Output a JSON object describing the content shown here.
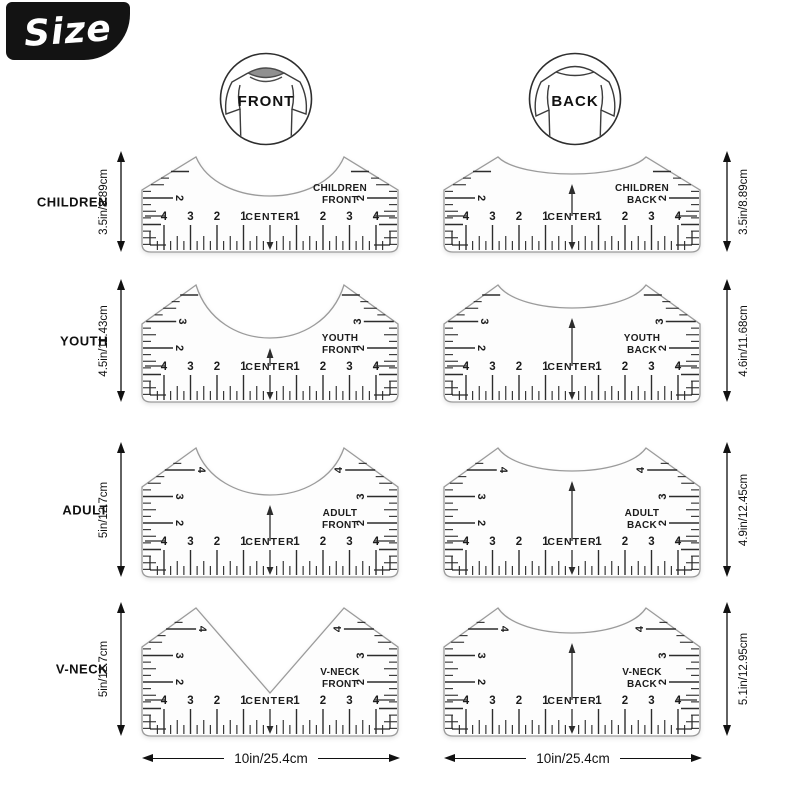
{
  "badge": {
    "label": "Size"
  },
  "headers": {
    "front": "FRONT",
    "back": "BACK"
  },
  "scale": {
    "left_numbers": [
      "4",
      "3",
      "2",
      "1"
    ],
    "center_label": "CENTER",
    "right_numbers": [
      "1",
      "2",
      "3",
      "4"
    ]
  },
  "rows": [
    {
      "label": "CHILDREN",
      "left_height": "3.5in/8.89cm",
      "right_height": "3.5in/8.89cm",
      "front": {
        "title": [
          "CHILDREN",
          "FRONT"
        ],
        "neck": "crew",
        "side_numbers": [
          "2"
        ],
        "arrows": "down"
      },
      "back": {
        "title": [
          "CHILDREN",
          "BACK"
        ],
        "neck": "back",
        "side_numbers": [
          "2"
        ],
        "arrows": "up-down"
      }
    },
    {
      "label": "YOUTH",
      "left_height": "4.5in/11.43cm",
      "right_height": "4.6in/11.68cm",
      "front": {
        "title": [
          "YOUTH",
          "FRONT"
        ],
        "neck": "crew",
        "side_numbers": [
          "3",
          "2"
        ],
        "arrows": "up-down"
      },
      "back": {
        "title": [
          "YOUTH",
          "BACK"
        ],
        "neck": "back",
        "side_numbers": [
          "3",
          "2"
        ],
        "arrows": "up-down"
      }
    },
    {
      "label": "ADULT",
      "left_height": "5in/12.7cm",
      "right_height": "4.9in/12.45cm",
      "front": {
        "title": [
          "ADULT",
          "FRONT"
        ],
        "neck": "crew",
        "side_numbers": [
          "4",
          "3",
          "2"
        ],
        "arrows": "up-down"
      },
      "back": {
        "title": [
          "ADULT",
          "BACK"
        ],
        "neck": "back",
        "side_numbers": [
          "4",
          "3",
          "2"
        ],
        "arrows": "up-down"
      }
    },
    {
      "label": "V-NECK",
      "left_height": "5in/12.7cm",
      "right_height": "5.1in/12.95cm",
      "front": {
        "title": [
          "V-NECK",
          "FRONT"
        ],
        "neck": "v",
        "side_numbers": [
          "4",
          "3",
          "2"
        ],
        "arrows": "down"
      },
      "back": {
        "title": [
          "V-NECK",
          "BACK"
        ],
        "neck": "back",
        "side_numbers": [
          "4",
          "3",
          "2"
        ],
        "arrows": "up-down"
      }
    }
  ],
  "bottom": {
    "front": "10in/25.4cm",
    "back": "10in/25.4cm"
  }
}
